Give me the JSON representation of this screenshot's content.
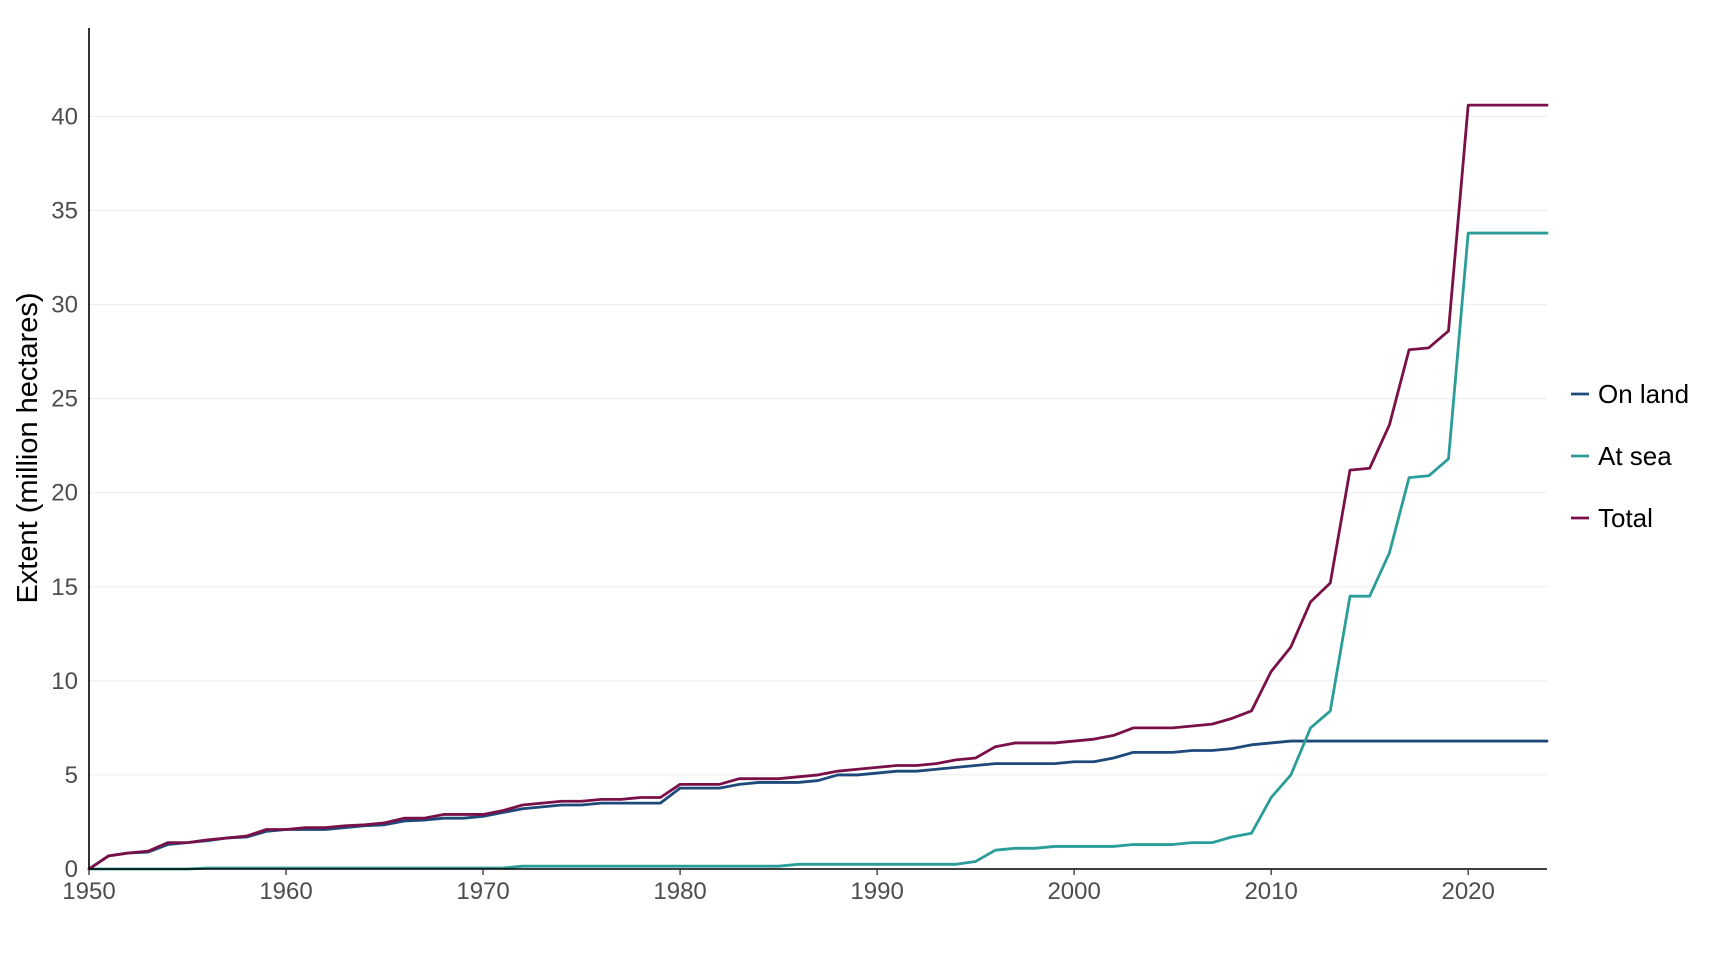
{
  "chart_data": {
    "type": "line",
    "title": "",
    "xlabel": "",
    "ylabel": "Extent (million hectares)",
    "xlim": [
      1950,
      2024
    ],
    "ylim": [
      0,
      44.7
    ],
    "x_ticks": [
      "1950",
      "1960",
      "1970",
      "1980",
      "1990",
      "2000",
      "2010",
      "2020"
    ],
    "y_ticks": [
      "0",
      "5",
      "10",
      "15",
      "20",
      "25",
      "30",
      "35",
      "40"
    ],
    "grid": "horizontal",
    "legend_position": "right",
    "series": [
      {
        "name": "On land",
        "color": "#1d4a7a",
        "points": [
          [
            1950,
            0
          ],
          [
            1951,
            0.7
          ],
          [
            1952,
            0.85
          ],
          [
            1953,
            0.9
          ],
          [
            1954,
            1.3
          ],
          [
            1955,
            1.4
          ],
          [
            1956,
            1.5
          ],
          [
            1957,
            1.65
          ],
          [
            1958,
            1.7
          ],
          [
            1959,
            2.0
          ],
          [
            1960,
            2.1
          ],
          [
            1961,
            2.1
          ],
          [
            1962,
            2.1
          ],
          [
            1963,
            2.2
          ],
          [
            1964,
            2.3
          ],
          [
            1965,
            2.35
          ],
          [
            1966,
            2.55
          ],
          [
            1967,
            2.6
          ],
          [
            1968,
            2.7
          ],
          [
            1969,
            2.7
          ],
          [
            1970,
            2.8
          ],
          [
            1971,
            3.0
          ],
          [
            1972,
            3.2
          ],
          [
            1973,
            3.3
          ],
          [
            1974,
            3.4
          ],
          [
            1975,
            3.4
          ],
          [
            1976,
            3.5
          ],
          [
            1977,
            3.5
          ],
          [
            1978,
            3.5
          ],
          [
            1979,
            3.5
          ],
          [
            1980,
            4.3
          ],
          [
            1981,
            4.3
          ],
          [
            1982,
            4.3
          ],
          [
            1983,
            4.5
          ],
          [
            1984,
            4.6
          ],
          [
            1985,
            4.6
          ],
          [
            1986,
            4.6
          ],
          [
            1987,
            4.7
          ],
          [
            1988,
            5.0
          ],
          [
            1989,
            5.0
          ],
          [
            1990,
            5.1
          ],
          [
            1991,
            5.2
          ],
          [
            1992,
            5.2
          ],
          [
            1993,
            5.3
          ],
          [
            1994,
            5.4
          ],
          [
            1995,
            5.5
          ],
          [
            1996,
            5.6
          ],
          [
            1997,
            5.6
          ],
          [
            1998,
            5.6
          ],
          [
            1999,
            5.6
          ],
          [
            2000,
            5.7
          ],
          [
            2001,
            5.7
          ],
          [
            2002,
            5.9
          ],
          [
            2003,
            6.2
          ],
          [
            2004,
            6.2
          ],
          [
            2005,
            6.2
          ],
          [
            2006,
            6.3
          ],
          [
            2007,
            6.3
          ],
          [
            2008,
            6.4
          ],
          [
            2009,
            6.6
          ],
          [
            2010,
            6.7
          ],
          [
            2011,
            6.8
          ],
          [
            2012,
            6.8
          ],
          [
            2013,
            6.8
          ],
          [
            2014,
            6.8
          ],
          [
            2015,
            6.8
          ],
          [
            2016,
            6.8
          ],
          [
            2017,
            6.8
          ],
          [
            2018,
            6.8
          ],
          [
            2019,
            6.8
          ],
          [
            2020,
            6.8
          ],
          [
            2021,
            6.8
          ],
          [
            2022,
            6.8
          ],
          [
            2023,
            6.8
          ],
          [
            2024,
            6.8
          ]
        ]
      },
      {
        "name": "At sea",
        "color": "#2a9d99",
        "points": [
          [
            1950,
            0
          ],
          [
            1955,
            0
          ],
          [
            1956,
            0.05
          ],
          [
            1971,
            0.05
          ],
          [
            1972,
            0.15
          ],
          [
            1985,
            0.15
          ],
          [
            1986,
            0.25
          ],
          [
            1994,
            0.25
          ],
          [
            1995,
            0.4
          ],
          [
            1996,
            1.0
          ],
          [
            1997,
            1.1
          ],
          [
            1998,
            1.1
          ],
          [
            1999,
            1.2
          ],
          [
            2002,
            1.2
          ],
          [
            2003,
            1.3
          ],
          [
            2005,
            1.3
          ],
          [
            2006,
            1.4
          ],
          [
            2007,
            1.4
          ],
          [
            2008,
            1.7
          ],
          [
            2009,
            1.9
          ],
          [
            2010,
            3.8
          ],
          [
            2011,
            5.0
          ],
          [
            2012,
            7.5
          ],
          [
            2013,
            8.4
          ],
          [
            2014,
            14.5
          ],
          [
            2015,
            14.5
          ],
          [
            2016,
            16.8
          ],
          [
            2017,
            20.8
          ],
          [
            2018,
            20.9
          ],
          [
            2019,
            21.8
          ],
          [
            2020,
            33.8
          ],
          [
            2021,
            33.8
          ],
          [
            2022,
            33.8
          ],
          [
            2023,
            33.8
          ],
          [
            2024,
            33.8
          ]
        ]
      },
      {
        "name": "Total",
        "color": "#7a1048",
        "points": [
          [
            1950,
            0
          ],
          [
            1951,
            0.7
          ],
          [
            1952,
            0.85
          ],
          [
            1953,
            0.95
          ],
          [
            1954,
            1.4
          ],
          [
            1955,
            1.4
          ],
          [
            1956,
            1.55
          ],
          [
            1957,
            1.65
          ],
          [
            1958,
            1.75
          ],
          [
            1959,
            2.1
          ],
          [
            1960,
            2.1
          ],
          [
            1961,
            2.2
          ],
          [
            1962,
            2.2
          ],
          [
            1963,
            2.3
          ],
          [
            1964,
            2.35
          ],
          [
            1965,
            2.45
          ],
          [
            1966,
            2.7
          ],
          [
            1967,
            2.7
          ],
          [
            1968,
            2.9
          ],
          [
            1969,
            2.9
          ],
          [
            1970,
            2.9
          ],
          [
            1971,
            3.1
          ],
          [
            1972,
            3.4
          ],
          [
            1973,
            3.5
          ],
          [
            1974,
            3.6
          ],
          [
            1975,
            3.6
          ],
          [
            1976,
            3.7
          ],
          [
            1977,
            3.7
          ],
          [
            1978,
            3.8
          ],
          [
            1979,
            3.8
          ],
          [
            1980,
            4.5
          ],
          [
            1981,
            4.5
          ],
          [
            1982,
            4.5
          ],
          [
            1983,
            4.8
          ],
          [
            1984,
            4.8
          ],
          [
            1985,
            4.8
          ],
          [
            1986,
            4.9
          ],
          [
            1987,
            5.0
          ],
          [
            1988,
            5.2
          ],
          [
            1989,
            5.3
          ],
          [
            1990,
            5.4
          ],
          [
            1991,
            5.5
          ],
          [
            1992,
            5.5
          ],
          [
            1993,
            5.6
          ],
          [
            1994,
            5.8
          ],
          [
            1995,
            5.9
          ],
          [
            1996,
            6.5
          ],
          [
            1997,
            6.7
          ],
          [
            1998,
            6.7
          ],
          [
            1999,
            6.7
          ],
          [
            2000,
            6.8
          ],
          [
            2001,
            6.9
          ],
          [
            2002,
            7.1
          ],
          [
            2003,
            7.5
          ],
          [
            2004,
            7.5
          ],
          [
            2005,
            7.5
          ],
          [
            2006,
            7.6
          ],
          [
            2007,
            7.7
          ],
          [
            2008,
            8.0
          ],
          [
            2009,
            8.4
          ],
          [
            2010,
            10.5
          ],
          [
            2011,
            11.8
          ],
          [
            2012,
            14.2
          ],
          [
            2013,
            15.2
          ],
          [
            2014,
            21.2
          ],
          [
            2015,
            21.3
          ],
          [
            2016,
            23.6
          ],
          [
            2017,
            27.6
          ],
          [
            2018,
            27.7
          ],
          [
            2019,
            28.6
          ],
          [
            2020,
            40.6
          ],
          [
            2021,
            40.6
          ],
          [
            2022,
            40.6
          ],
          [
            2023,
            40.6
          ],
          [
            2024,
            40.6
          ]
        ]
      }
    ]
  }
}
